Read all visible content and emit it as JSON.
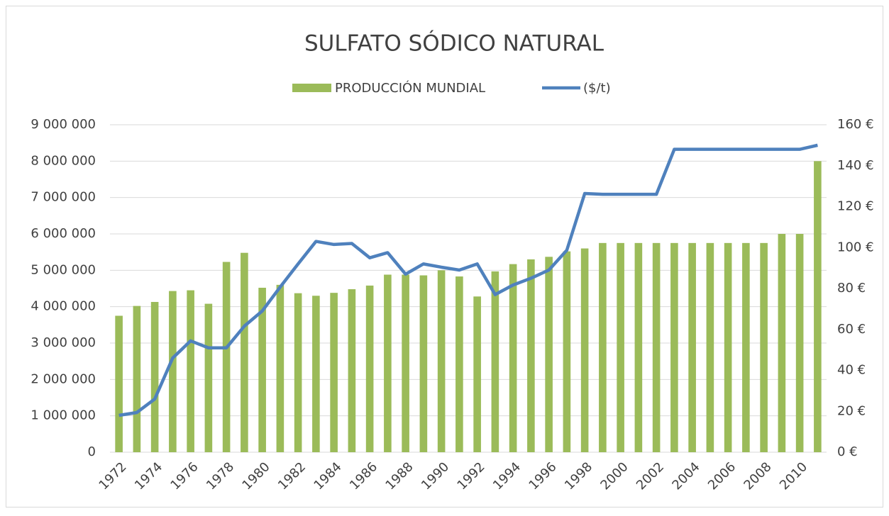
{
  "chart_data": {
    "type": "bar",
    "title": "SULFATO SÓDICO NATURAL",
    "categories": [
      "1972",
      null,
      "1974",
      null,
      "1976",
      null,
      "1978",
      null,
      "1980",
      null,
      "1982",
      null,
      "1984",
      null,
      "1986",
      null,
      "1988",
      null,
      "1990",
      null,
      "1992",
      null,
      "1994",
      null,
      "1996",
      null,
      "1998",
      null,
      "2000",
      null,
      "2002",
      null,
      "2004",
      null,
      "2006",
      null,
      "2008",
      null,
      "2010",
      null
    ],
    "series": [
      {
        "name": "PRODUCCIÓN MUNDIAL",
        "type": "bar",
        "color": "#9bbb59",
        "values": [
          3750000,
          4020000,
          4130000,
          4430000,
          4450000,
          4080000,
          5230000,
          5480000,
          4520000,
          4600000,
          4370000,
          4300000,
          4380000,
          4480000,
          4580000,
          4880000,
          4880000,
          4860000,
          5000000,
          4830000,
          4280000,
          4970000,
          5170000,
          5300000,
          5370000,
          5520000,
          5600000,
          5750000,
          5750000,
          5750000,
          5750000,
          5750000,
          5750000,
          5750000,
          5750000,
          5750000,
          5750000,
          6000000,
          6000000,
          8000000
        ]
      },
      {
        "name": "($/t)",
        "type": "line",
        "axis": "y2",
        "color": "#4f81bd",
        "values": [
          18,
          19.4,
          26,
          46,
          54.4,
          51,
          51,
          61.6,
          69,
          80.7,
          92,
          103,
          101.5,
          102,
          95,
          97.5,
          87,
          92,
          90.4,
          89,
          92,
          77,
          81.7,
          85,
          89,
          98.7,
          126.4,
          126,
          126,
          126,
          126,
          148,
          148,
          148,
          148,
          148,
          148,
          148,
          148,
          150
        ]
      }
    ],
    "ylim": [
      0,
      9000000
    ],
    "yticks": [
      0,
      {
        "value": 1000000,
        "label": "1 000 000"
      },
      {
        "value": 2000000,
        "label": "2 000 000"
      },
      {
        "value": 3000000,
        "label": "3 000 000"
      },
      {
        "value": 4000000,
        "label": "4 000 000"
      },
      {
        "value": 5000000,
        "label": "5 000 000"
      },
      {
        "value": 6000000,
        "label": "6 000 000"
      },
      {
        "value": 7000000,
        "label": "7 000 000"
      },
      {
        "value": 8000000,
        "label": "8 000 000"
      },
      {
        "value": 9000000,
        "label": "9 000 000"
      }
    ],
    "y2lim": [
      0,
      160
    ],
    "y2ticks": [
      {
        "value": 0,
        "label": "0 €"
      },
      {
        "value": 20,
        "label": "20 €"
      },
      {
        "value": 40,
        "label": "40 €"
      },
      {
        "value": 60,
        "label": "60 €"
      },
      {
        "value": 80,
        "label": "80 €"
      },
      {
        "value": 100,
        "label": "100 €"
      },
      {
        "value": 120,
        "label": "120 €"
      },
      {
        "value": 140,
        "label": "140 €"
      },
      {
        "value": 160,
        "label": "160 €"
      }
    ],
    "grid": true,
    "legend": "top"
  }
}
